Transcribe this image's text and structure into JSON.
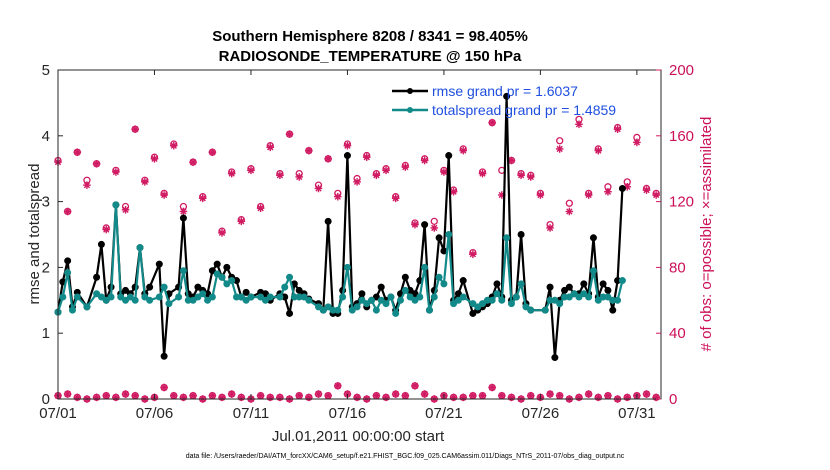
{
  "colors": {
    "rmse": "#000000",
    "spread": "#138a8a",
    "obs": "#d01a62",
    "legend_text": "#1f4fe0",
    "axis": "#262626"
  },
  "chart_data": {
    "type": "line",
    "title_line1": "Southern Hemisphere 8208 / 8341 = 98.405%",
    "title_line2": "RADIOSONDE_TEMPERATURE @ 150 hPa",
    "xlabel": "Jul.01,2011 00:00:00 start",
    "ylabel_left": "rmse and totalspread",
    "ylabel_right": "# of obs: o=possible; ×=assimilated",
    "footer": "data file: /Users/raeder/DAI/ATM_forcXX/CAM6_setup/f.e21.FHIST_BGC.f09_025.CAM6assim.011/Diags_NTrS_2011-07/obs_diag_output.nc",
    "xlim": [
      0,
      31.25
    ],
    "ylim_left": [
      0,
      5
    ],
    "ylim_right": [
      0,
      200
    ],
    "x_ticks": [
      0,
      5,
      10,
      15,
      20,
      25,
      30
    ],
    "x_tick_labels": [
      "07/01",
      "07/06",
      "07/11",
      "07/16",
      "07/21",
      "07/26",
      "07/31"
    ],
    "y_left_ticks": [
      "0",
      "1",
      "2",
      "3",
      "4",
      "5"
    ],
    "y_right_ticks": [
      "0",
      "40",
      "80",
      "120",
      "160",
      "200"
    ],
    "legend": {
      "position": "top-right",
      "rmse_label": "rmse grand pr = 1.6037",
      "spread_label": "totalspread grand pr = 1.4859"
    },
    "rmse": [
      [
        0,
        1.32
      ],
      [
        0.25,
        1.78
      ],
      [
        0.5,
        2.1
      ],
      [
        0.75,
        1.4
      ],
      [
        1,
        1.62
      ],
      [
        1.5,
        1.4
      ],
      [
        2,
        1.85
      ],
      [
        2.25,
        2.35
      ],
      [
        2.5,
        1.5
      ],
      [
        2.75,
        1.7
      ],
      [
        3,
        2.95
      ],
      [
        3.25,
        1.6
      ],
      [
        3.5,
        1.65
      ],
      [
        3.75,
        1.6
      ],
      [
        4,
        1.7
      ],
      [
        4.25,
        2.3
      ],
      [
        4.5,
        1.6
      ],
      [
        4.75,
        1.7
      ],
      [
        5.25,
        2.05
      ],
      [
        5.5,
        0.65
      ],
      [
        5.75,
        1.6
      ],
      [
        6.25,
        1.7
      ],
      [
        6.5,
        2.75
      ],
      [
        6.75,
        1.6
      ],
      [
        7,
        1.55
      ],
      [
        7.25,
        1.7
      ],
      [
        7.5,
        1.65
      ],
      [
        7.75,
        1.6
      ],
      [
        8,
        1.95
      ],
      [
        8.25,
        2.05
      ],
      [
        8.5,
        1.85
      ],
      [
        8.75,
        2.0
      ],
      [
        9,
        1.85
      ],
      [
        9.25,
        1.8
      ],
      [
        9.5,
        1.55
      ],
      [
        9.75,
        1.62
      ],
      [
        10,
        1.55
      ],
      [
        10.5,
        1.62
      ],
      [
        10.75,
        1.6
      ],
      [
        11,
        1.5
      ],
      [
        11.5,
        1.6
      ],
      [
        11.75,
        1.55
      ],
      [
        12,
        1.3
      ],
      [
        12.25,
        1.75
      ],
      [
        12.5,
        1.65
      ],
      [
        12.75,
        1.6
      ],
      [
        13,
        1.52
      ],
      [
        13.5,
        1.45
      ],
      [
        13.75,
        1.35
      ],
      [
        14,
        2.7
      ],
      [
        14.25,
        1.3
      ],
      [
        14.5,
        1.3
      ],
      [
        14.75,
        1.65
      ],
      [
        15,
        3.7
      ],
      [
        15.25,
        1.4
      ],
      [
        15.5,
        1.45
      ],
      [
        15.75,
        1.6
      ],
      [
        16,
        1.4
      ],
      [
        16.25,
        1.5
      ],
      [
        16.5,
        1.55
      ],
      [
        16.75,
        1.7
      ],
      [
        17,
        1.5
      ],
      [
        17.25,
        1.55
      ],
      [
        17.5,
        1.35
      ],
      [
        17.75,
        1.6
      ],
      [
        18,
        1.85
      ],
      [
        18.25,
        1.65
      ],
      [
        18.5,
        1.6
      ],
      [
        18.75,
        1.8
      ],
      [
        19,
        2.65
      ],
      [
        19.25,
        1.35
      ],
      [
        19.5,
        1.65
      ],
      [
        19.75,
        2.45
      ],
      [
        20,
        2.25
      ],
      [
        20.25,
        3.7
      ],
      [
        20.5,
        1.5
      ],
      [
        20.75,
        1.6
      ],
      [
        21,
        1.8
      ],
      [
        21.5,
        1.3
      ],
      [
        21.75,
        1.35
      ],
      [
        22,
        1.4
      ],
      [
        22.25,
        1.45
      ],
      [
        22.5,
        1.55
      ],
      [
        22.75,
        1.75
      ],
      [
        23,
        1.55
      ],
      [
        23.25,
        4.6
      ],
      [
        23.5,
        1.5
      ],
      [
        23.75,
        1.55
      ],
      [
        24,
        2.5
      ],
      [
        24.25,
        1.45
      ],
      [
        24.5,
        1.35
      ],
      [
        25.25,
        1.35
      ],
      [
        25.5,
        1.7
      ],
      [
        25.75,
        0.63
      ],
      [
        26,
        1.5
      ],
      [
        26.25,
        1.65
      ],
      [
        26.5,
        1.7
      ],
      [
        26.75,
        1.6
      ],
      [
        27,
        1.6
      ],
      [
        27.25,
        1.75
      ],
      [
        27.5,
        1.6
      ],
      [
        27.75,
        2.45
      ],
      [
        28,
        1.55
      ],
      [
        28.25,
        1.75
      ],
      [
        28.5,
        1.65
      ],
      [
        28.75,
        1.35
      ],
      [
        29,
        1.8
      ],
      [
        29.25,
        3.2
      ]
    ],
    "totalspread": [
      [
        0,
        1.32
      ],
      [
        0.25,
        1.55
      ],
      [
        0.5,
        1.92
      ],
      [
        0.75,
        1.35
      ],
      [
        1,
        1.55
      ],
      [
        1.5,
        1.4
      ],
      [
        2,
        1.6
      ],
      [
        2.25,
        1.55
      ],
      [
        2.5,
        1.5
      ],
      [
        2.75,
        1.55
      ],
      [
        3,
        2.95
      ],
      [
        3.25,
        1.55
      ],
      [
        3.5,
        1.5
      ],
      [
        3.75,
        1.55
      ],
      [
        4,
        1.5
      ],
      [
        4.25,
        2.3
      ],
      [
        4.5,
        1.55
      ],
      [
        4.75,
        1.5
      ],
      [
        5.25,
        1.55
      ],
      [
        5.5,
        1.7
      ],
      [
        5.75,
        1.45
      ],
      [
        6.25,
        1.55
      ],
      [
        6.5,
        1.95
      ],
      [
        6.75,
        1.5
      ],
      [
        7,
        1.5
      ],
      [
        7.25,
        1.55
      ],
      [
        7.5,
        1.6
      ],
      [
        7.75,
        1.5
      ],
      [
        8,
        1.55
      ],
      [
        8.25,
        1.9
      ],
      [
        8.5,
        1.85
      ],
      [
        8.75,
        1.75
      ],
      [
        9,
        1.8
      ],
      [
        9.25,
        1.55
      ],
      [
        9.5,
        1.55
      ],
      [
        9.75,
        1.5
      ],
      [
        10,
        1.55
      ],
      [
        10.5,
        1.55
      ],
      [
        10.75,
        1.5
      ],
      [
        11,
        1.55
      ],
      [
        11.5,
        1.55
      ],
      [
        11.75,
        1.7
      ],
      [
        12,
        1.85
      ],
      [
        12.25,
        1.55
      ],
      [
        12.5,
        1.55
      ],
      [
        12.75,
        1.55
      ],
      [
        13,
        1.5
      ],
      [
        13.5,
        1.4
      ],
      [
        13.75,
        1.35
      ],
      [
        14,
        1.4
      ],
      [
        14.25,
        1.35
      ],
      [
        14.5,
        1.35
      ],
      [
        14.75,
        1.55
      ],
      [
        15,
        2.0
      ],
      [
        15.25,
        1.35
      ],
      [
        15.5,
        1.4
      ],
      [
        15.75,
        1.5
      ],
      [
        16,
        1.45
      ],
      [
        16.25,
        1.5
      ],
      [
        16.5,
        1.35
      ],
      [
        16.75,
        1.5
      ],
      [
        17,
        1.45
      ],
      [
        17.25,
        1.55
      ],
      [
        17.5,
        1.3
      ],
      [
        17.75,
        1.5
      ],
      [
        18,
        1.65
      ],
      [
        18.25,
        1.55
      ],
      [
        18.5,
        1.5
      ],
      [
        18.75,
        1.55
      ],
      [
        19,
        2.0
      ],
      [
        19.25,
        1.35
      ],
      [
        19.5,
        1.55
      ],
      [
        19.75,
        1.85
      ],
      [
        20,
        1.75
      ],
      [
        20.25,
        2.5
      ],
      [
        20.5,
        1.45
      ],
      [
        20.75,
        1.5
      ],
      [
        21,
        1.55
      ],
      [
        21.5,
        1.45
      ],
      [
        21.75,
        1.4
      ],
      [
        22,
        1.45
      ],
      [
        22.25,
        1.5
      ],
      [
        22.5,
        1.5
      ],
      [
        22.75,
        1.6
      ],
      [
        23,
        1.5
      ],
      [
        23.25,
        2.45
      ],
      [
        23.5,
        1.45
      ],
      [
        23.75,
        1.55
      ],
      [
        24,
        1.75
      ],
      [
        24.25,
        1.4
      ],
      [
        24.5,
        1.35
      ],
      [
        25.25,
        1.35
      ],
      [
        25.5,
        1.5
      ],
      [
        25.75,
        1.5
      ],
      [
        26,
        1.45
      ],
      [
        26.25,
        1.55
      ],
      [
        26.5,
        1.55
      ],
      [
        26.75,
        1.6
      ],
      [
        27,
        1.55
      ],
      [
        27.25,
        1.6
      ],
      [
        27.5,
        1.55
      ],
      [
        27.75,
        1.95
      ],
      [
        28,
        1.5
      ],
      [
        28.25,
        1.55
      ],
      [
        28.5,
        1.55
      ],
      [
        28.75,
        1.5
      ],
      [
        29,
        1.5
      ],
      [
        29.25,
        1.8
      ]
    ],
    "obs_possible_upper": [
      [
        0,
        145
      ],
      [
        0.5,
        114
      ],
      [
        1,
        150
      ],
      [
        1.5,
        133
      ],
      [
        2,
        143
      ],
      [
        2.5,
        104
      ],
      [
        3,
        139
      ],
      [
        3.5,
        117
      ],
      [
        4,
        164
      ],
      [
        4.5,
        133
      ],
      [
        5,
        147
      ],
      [
        5.5,
        125
      ],
      [
        6,
        155
      ],
      [
        6.5,
        117
      ],
      [
        7,
        144
      ],
      [
        7.5,
        123
      ],
      [
        8,
        150
      ],
      [
        8.5,
        102
      ],
      [
        9,
        138
      ],
      [
        9.5,
        109
      ],
      [
        10,
        140
      ],
      [
        10.5,
        117
      ],
      [
        11,
        154
      ],
      [
        11.5,
        137
      ],
      [
        12,
        161
      ],
      [
        12.5,
        137
      ],
      [
        13,
        151
      ],
      [
        13.5,
        130
      ],
      [
        14,
        146
      ],
      [
        14.5,
        125
      ],
      [
        15,
        155
      ],
      [
        15.5,
        134
      ],
      [
        16,
        148
      ],
      [
        16.5,
        137
      ],
      [
        17,
        140
      ],
      [
        17.5,
        123
      ],
      [
        18,
        142
      ],
      [
        18.5,
        107
      ],
      [
        19,
        146
      ],
      [
        19.5,
        108
      ],
      [
        20,
        139
      ],
      [
        20.5,
        127
      ],
      [
        21,
        152
      ],
      [
        21.5,
        89
      ],
      [
        22,
        138
      ],
      [
        22.5,
        168
      ],
      [
        23,
        139
      ],
      [
        23.5,
        145
      ],
      [
        24,
        137
      ],
      [
        24.5,
        136
      ],
      [
        25,
        125
      ],
      [
        25.5,
        106
      ],
      [
        26,
        157
      ],
      [
        26.5,
        119
      ],
      [
        27,
        170
      ],
      [
        27.5,
        125
      ],
      [
        28,
        152
      ],
      [
        28.5,
        129
      ],
      [
        29,
        165
      ],
      [
        29.5,
        132
      ],
      [
        30,
        159
      ],
      [
        30.5,
        128
      ],
      [
        31,
        125
      ]
    ],
    "obs_assimilated_upper": [
      [
        0,
        144
      ],
      [
        0.5,
        114
      ],
      [
        1,
        150
      ],
      [
        1.5,
        130
      ],
      [
        2,
        143
      ],
      [
        2.5,
        103
      ],
      [
        3,
        138
      ],
      [
        3.5,
        115
      ],
      [
        4,
        164
      ],
      [
        4.5,
        132
      ],
      [
        5,
        146
      ],
      [
        5.5,
        124
      ],
      [
        6,
        154
      ],
      [
        6.5,
        114
      ],
      [
        7,
        144
      ],
      [
        7.5,
        122
      ],
      [
        8,
        150
      ],
      [
        8.5,
        101
      ],
      [
        9,
        137
      ],
      [
        9.5,
        108
      ],
      [
        10,
        139
      ],
      [
        10.5,
        116
      ],
      [
        11,
        153
      ],
      [
        11.5,
        136
      ],
      [
        12,
        161
      ],
      [
        12.5,
        135
      ],
      [
        13,
        151
      ],
      [
        13.5,
        128
      ],
      [
        14,
        146
      ],
      [
        14.5,
        123
      ],
      [
        15,
        154
      ],
      [
        15.5,
        132
      ],
      [
        16,
        147
      ],
      [
        16.5,
        136
      ],
      [
        17,
        139
      ],
      [
        17.5,
        122
      ],
      [
        18,
        141
      ],
      [
        18.5,
        106
      ],
      [
        19,
        145
      ],
      [
        19.5,
        104
      ],
      [
        20,
        138
      ],
      [
        20.5,
        126
      ],
      [
        21,
        151
      ],
      [
        21.5,
        88
      ],
      [
        22,
        137
      ],
      [
        22.5,
        168
      ],
      [
        23,
        124
      ],
      [
        23.5,
        145
      ],
      [
        24,
        136
      ],
      [
        24.5,
        135
      ],
      [
        25,
        124
      ],
      [
        25.5,
        104
      ],
      [
        26,
        152
      ],
      [
        26.5,
        114
      ],
      [
        27,
        167
      ],
      [
        27.5,
        124
      ],
      [
        28,
        151
      ],
      [
        28.5,
        126
      ],
      [
        29,
        164
      ],
      [
        29.5,
        129
      ],
      [
        30,
        156
      ],
      [
        30.5,
        127
      ],
      [
        31,
        124
      ]
    ],
    "obs_lower": [
      [
        0,
        2
      ],
      [
        0.5,
        3
      ],
      [
        1,
        1
      ],
      [
        1.5,
        0
      ],
      [
        2,
        1
      ],
      [
        2.5,
        2
      ],
      [
        3,
        1
      ],
      [
        3.5,
        3
      ],
      [
        4,
        2
      ],
      [
        4.5,
        0
      ],
      [
        5,
        1
      ],
      [
        5.5,
        7
      ],
      [
        6,
        2
      ],
      [
        6.5,
        1
      ],
      [
        7,
        2
      ],
      [
        7.5,
        0
      ],
      [
        8,
        2
      ],
      [
        8.5,
        1
      ],
      [
        9,
        3
      ],
      [
        9.5,
        1
      ],
      [
        10,
        0
      ],
      [
        10.5,
        2
      ],
      [
        11,
        1
      ],
      [
        11.5,
        1
      ],
      [
        12,
        0
      ],
      [
        12.5,
        2
      ],
      [
        13,
        1
      ],
      [
        13.5,
        3
      ],
      [
        14,
        2
      ],
      [
        14.5,
        8
      ],
      [
        15,
        3
      ],
      [
        15.5,
        1
      ],
      [
        16,
        0
      ],
      [
        16.5,
        2
      ],
      [
        17,
        1
      ],
      [
        17.5,
        3
      ],
      [
        18,
        2
      ],
      [
        18.5,
        8
      ],
      [
        19,
        3
      ],
      [
        19.5,
        0
      ],
      [
        20,
        2
      ],
      [
        20.5,
        1
      ],
      [
        21,
        1
      ],
      [
        21.5,
        2
      ],
      [
        22,
        2
      ],
      [
        22.5,
        7
      ],
      [
        23,
        2
      ],
      [
        23.5,
        1
      ],
      [
        24,
        0
      ],
      [
        24.5,
        2
      ],
      [
        25,
        1
      ],
      [
        25.5,
        3
      ],
      [
        26,
        2
      ],
      [
        26.5,
        0
      ],
      [
        27,
        1
      ],
      [
        27.5,
        3
      ],
      [
        28,
        1
      ],
      [
        28.5,
        2
      ],
      [
        29,
        0
      ],
      [
        29.5,
        1
      ],
      [
        30,
        2
      ],
      [
        30.5,
        3
      ],
      [
        31,
        1
      ]
    ]
  }
}
